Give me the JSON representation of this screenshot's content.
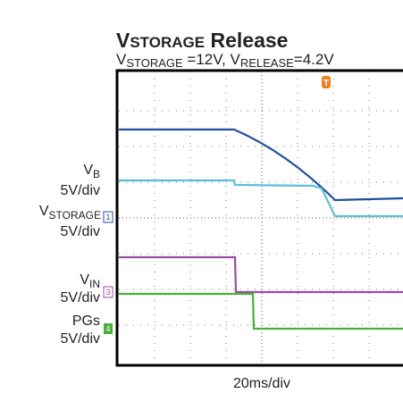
{
  "title": {
    "v": "V",
    "sub": "STORAGE",
    "rest": " Release"
  },
  "subtitle": [
    "V",
    "STORAGE",
    " =12V, V",
    "RELEASE",
    "=4.2V"
  ],
  "channels": [
    {
      "name": "V",
      "sub": "B",
      "scale": "5V/div"
    },
    {
      "name": "V",
      "sub": "STORAGE",
      "scale": "5V/div",
      "marker": "1"
    },
    {
      "name": "V",
      "sub": "IN",
      "scale": "5V/div",
      "marker": "3"
    },
    {
      "name": "PGs",
      "scale": "5V/div",
      "marker": "4"
    }
  ],
  "trigger": "T",
  "timebase": "20ms/div"
}
